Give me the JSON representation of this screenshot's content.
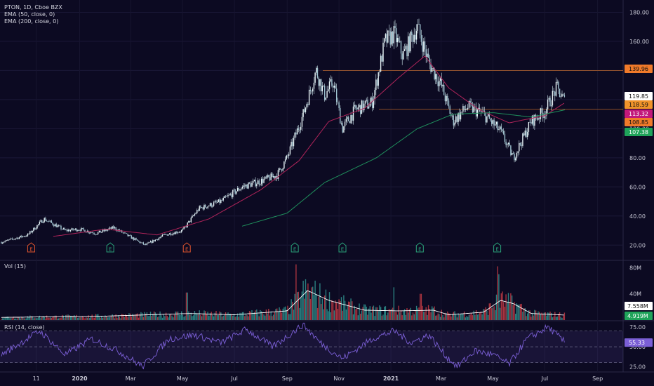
{
  "header": {
    "symbol_line": "PTON, 1D, Cboe BZX",
    "indicators": [
      "EMA (50, close, 0)",
      "EMA (200, close, 0)"
    ]
  },
  "volume_panel": {
    "title": "Vol (15)"
  },
  "rsi_panel": {
    "title": "RSI (14, close)"
  },
  "colors": {
    "background": "#0c0a22",
    "candle_up": "#cfe8ef",
    "candle_down": "#cfe8ef",
    "ema50": "#b0245a",
    "ema200": "#1f8f5c",
    "hline": "#e07a2a",
    "rsi": "#7b5fd6",
    "vol_up": "#2a7f7f",
    "vol_down": "#a6333f",
    "vol_ma": "#ffffff"
  },
  "chart_data": [
    {
      "type": "candlestick",
      "title": "PTON, 1D, Cboe BZX",
      "y_ticks": [
        "180.00",
        "160.00",
        "140.00",
        "120.00",
        "100.00",
        "80.00",
        "60.00",
        "40.00",
        "20.00"
      ],
      "ylim": [
        10,
        186
      ],
      "x_ticks": [
        "11",
        "2020",
        "Mar",
        "May",
        "Jul",
        "Sep",
        "Nov",
        "2021",
        "Mar",
        "May",
        "Jul",
        "Sep"
      ],
      "price_path": [
        [
          "2019-10-01",
          22
        ],
        [
          "2019-11-01",
          27
        ],
        [
          "2019-11-20",
          38
        ],
        [
          "2019-12-15",
          30
        ],
        [
          "2020-01-01",
          31
        ],
        [
          "2020-01-20",
          28
        ],
        [
          "2020-02-10",
          32
        ],
        [
          "2020-02-25",
          27
        ],
        [
          "2020-03-18",
          20
        ],
        [
          "2020-04-10",
          27
        ],
        [
          "2020-05-01",
          30
        ],
        [
          "2020-05-20",
          45
        ],
        [
          "2020-06-15",
          50
        ],
        [
          "2020-07-10",
          60
        ],
        [
          "2020-08-01",
          64
        ],
        [
          "2020-08-20",
          68
        ],
        [
          "2020-09-01",
          80
        ],
        [
          "2020-09-20",
          110
        ],
        [
          "2020-10-05",
          140
        ],
        [
          "2020-10-15",
          123
        ],
        [
          "2020-10-25",
          132
        ],
        [
          "2020-11-05",
          100
        ],
        [
          "2020-11-20",
          113
        ],
        [
          "2020-12-10",
          118
        ],
        [
          "2020-12-25",
          160
        ],
        [
          "2021-01-05",
          165
        ],
        [
          "2021-01-15",
          150
        ],
        [
          "2021-02-01",
          170
        ],
        [
          "2021-02-15",
          145
        ],
        [
          "2021-03-01",
          130
        ],
        [
          "2021-03-15",
          105
        ],
        [
          "2021-04-01",
          115
        ],
        [
          "2021-04-20",
          110
        ],
        [
          "2021-05-10",
          98
        ],
        [
          "2021-05-25",
          80
        ],
        [
          "2021-06-15",
          105
        ],
        [
          "2021-07-01",
          112
        ],
        [
          "2021-07-15",
          128
        ],
        [
          "2021-07-25",
          118
        ]
      ],
      "ema50_path": [
        [
          "2019-12-01",
          26
        ],
        [
          "2020-02-01",
          31
        ],
        [
          "2020-04-01",
          27
        ],
        [
          "2020-06-01",
          38
        ],
        [
          "2020-08-01",
          58
        ],
        [
          "2020-09-15",
          78
        ],
        [
          "2020-10-20",
          105
        ],
        [
          "2020-12-01",
          114
        ],
        [
          "2021-01-10",
          135
        ],
        [
          "2021-02-10",
          150
        ],
        [
          "2021-03-10",
          128
        ],
        [
          "2021-04-15",
          113
        ],
        [
          "2021-05-20",
          104
        ],
        [
          "2021-07-01",
          109
        ],
        [
          "2021-07-25",
          118
        ]
      ],
      "ema200_path": [
        [
          "2020-07-10",
          33
        ],
        [
          "2020-09-01",
          42
        ],
        [
          "2020-10-15",
          63
        ],
        [
          "2020-12-15",
          80
        ],
        [
          "2021-02-01",
          100
        ],
        [
          "2021-03-15",
          110
        ],
        [
          "2021-05-01",
          111
        ],
        [
          "2021-06-15",
          108
        ],
        [
          "2021-07-25",
          113
        ]
      ],
      "horizontal_lines": [
        139.96,
        113.32
      ],
      "price_tags": [
        {
          "label": "139.96",
          "value": 139.96,
          "bg": "#f07a2a",
          "fg": "#101010"
        },
        {
          "label": "119.85",
          "value": 119.85,
          "bg": "#ffffff",
          "fg": "#101010"
        },
        {
          "label": "118.59",
          "value": 118.59,
          "bg": "#f0932a",
          "fg": "#101010"
        },
        {
          "label": "113.32",
          "value": 113.32,
          "bg": "#c2187a",
          "fg": "#ffffff"
        },
        {
          "label": "108.85",
          "value": 108.85,
          "bg": "#f07a2a",
          "fg": "#101010"
        },
        {
          "label": "107.38",
          "value": 107.38,
          "bg": "#1fa35a",
          "fg": "#ffffff"
        }
      ],
      "event_markers": [
        {
          "label": "E",
          "date": "2019-11-05",
          "kind": "red"
        },
        {
          "label": "E",
          "date": "2020-02-06",
          "kind": "green"
        },
        {
          "label": "E",
          "date": "2020-05-06",
          "kind": "red"
        },
        {
          "label": "E",
          "date": "2020-09-10",
          "kind": "green"
        },
        {
          "label": "E",
          "date": "2020-11-05",
          "kind": "green"
        },
        {
          "label": "E",
          "date": "2021-02-04",
          "kind": "green"
        },
        {
          "label": "E",
          "date": "2021-05-06",
          "kind": "green"
        }
      ]
    },
    {
      "type": "bar",
      "title": "Vol (15)",
      "y_ticks": [
        "80M",
        "40M"
      ],
      "ylim": [
        0,
        90
      ],
      "price_tags": [
        {
          "label": "7.558M",
          "value": 7.558,
          "bg": "#ffffff",
          "fg": "#101010"
        },
        {
          "label": "4.919M",
          "value": 4.919,
          "bg": "#1fa35a",
          "fg": "#ffffff"
        }
      ],
      "volume_ma_path": [
        [
          "2019-10-01",
          4
        ],
        [
          "2020-02-01",
          6
        ],
        [
          "2020-05-10",
          10
        ],
        [
          "2020-07-01",
          8
        ],
        [
          "2020-09-01",
          14
        ],
        [
          "2020-09-25",
          45
        ],
        [
          "2020-10-20",
          30
        ],
        [
          "2020-12-01",
          15
        ],
        [
          "2021-01-10",
          14
        ],
        [
          "2021-02-20",
          15
        ],
        [
          "2021-03-10",
          8
        ],
        [
          "2021-04-20",
          12
        ],
        [
          "2021-05-10",
          30
        ],
        [
          "2021-05-25",
          25
        ],
        [
          "2021-06-15",
          10
        ],
        [
          "2021-07-25",
          7.5
        ]
      ],
      "volume_spikes": [
        [
          "2020-05-06",
          42
        ],
        [
          "2020-09-11",
          85
        ],
        [
          "2020-09-20",
          60
        ],
        [
          "2021-01-05",
          50
        ],
        [
          "2021-02-05",
          40
        ],
        [
          "2021-05-06",
          82
        ],
        [
          "2021-05-08",
          70
        ]
      ]
    },
    {
      "type": "line",
      "title": "RSI (14, close)",
      "y_ticks": [
        "75.00",
        "50.00",
        "25.00"
      ],
      "ylim": [
        20,
        82
      ],
      "band": [
        30,
        70
      ],
      "price_tags": [
        {
          "label": "55.33",
          "value": 55.33,
          "bg": "#7b5fd6",
          "fg": "#ffffff"
        }
      ],
      "rsi_path": [
        [
          "2019-10-01",
          40
        ],
        [
          "2019-11-15",
          70
        ],
        [
          "2019-12-15",
          40
        ],
        [
          "2020-01-15",
          60
        ],
        [
          "2020-02-15",
          45
        ],
        [
          "2020-03-15",
          25
        ],
        [
          "2020-04-15",
          60
        ],
        [
          "2020-05-15",
          65
        ],
        [
          "2020-06-15",
          55
        ],
        [
          "2020-07-15",
          72
        ],
        [
          "2020-08-15",
          50
        ],
        [
          "2020-09-20",
          78
        ],
        [
          "2020-10-10",
          55
        ],
        [
          "2020-11-05",
          35
        ],
        [
          "2020-12-10",
          60
        ],
        [
          "2021-01-05",
          70
        ],
        [
          "2021-01-25",
          55
        ],
        [
          "2021-02-15",
          65
        ],
        [
          "2021-03-05",
          40
        ],
        [
          "2021-03-20",
          25
        ],
        [
          "2021-04-10",
          45
        ],
        [
          "2021-05-01",
          40
        ],
        [
          "2021-05-20",
          28
        ],
        [
          "2021-06-10",
          60
        ],
        [
          "2021-07-05",
          75
        ],
        [
          "2021-07-25",
          55
        ]
      ]
    }
  ]
}
